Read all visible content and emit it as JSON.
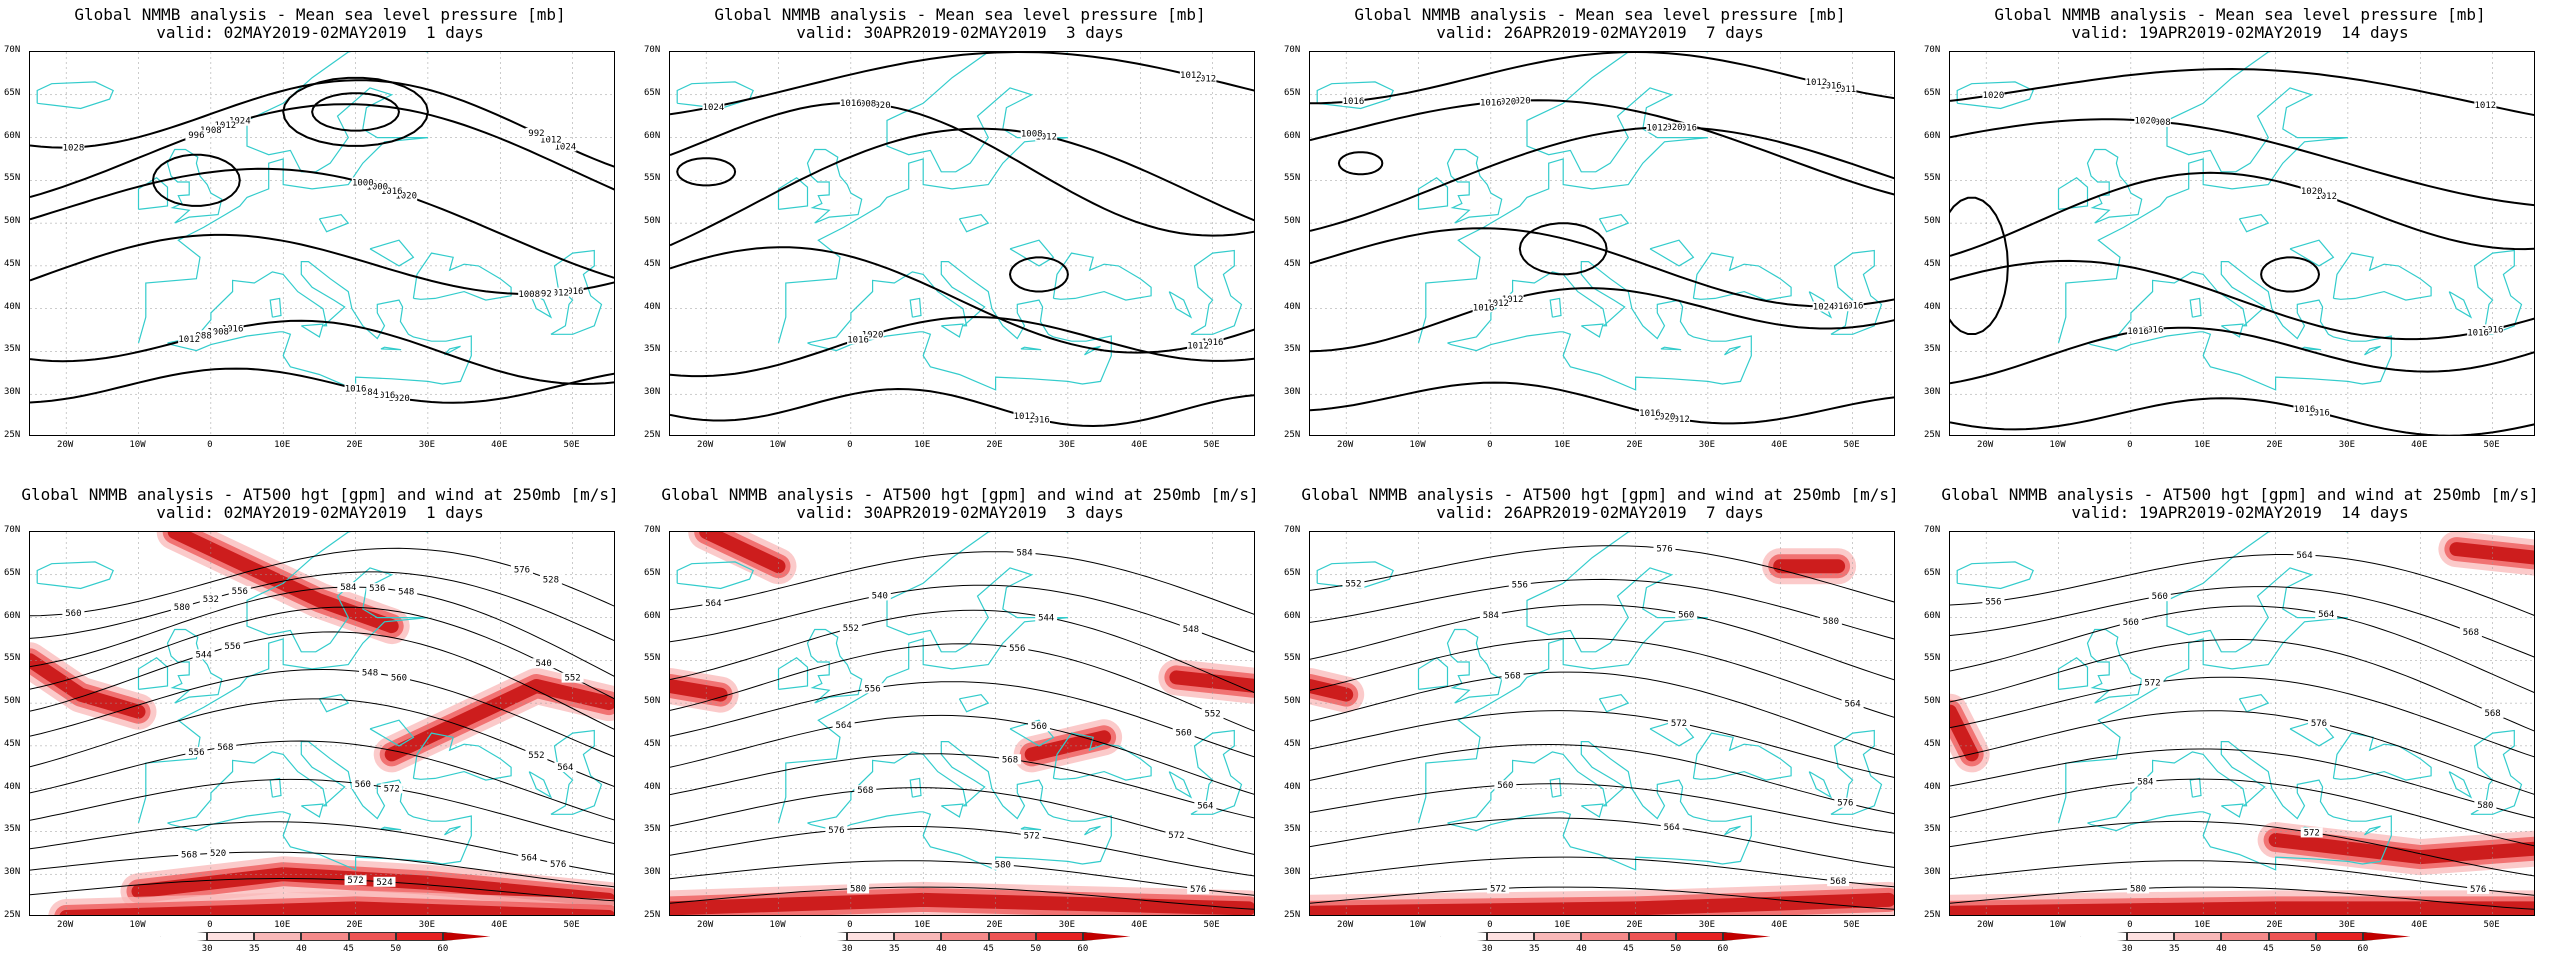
{
  "panels": [
    {
      "row": 0,
      "col": 0,
      "title_line1": "Global NMMB analysis - Mean sea level pressure [mb]",
      "title_line2": "valid: 02MAY2019-02MAY2019  1 days",
      "field": "mslp",
      "contour_labels": [
        "1028",
        "1024",
        "1020",
        "1016",
        "1016",
        "1020",
        "1024",
        "1012",
        "1016",
        "1012",
        "1008",
        "1016",
        "1012",
        "1008",
        "1000",
        "992",
        "988",
        "984",
        "992",
        "996",
        "1000",
        "1008",
        "1012",
        "1016"
      ]
    },
    {
      "row": 0,
      "col": 1,
      "title_line1": "Global NMMB analysis - Mean sea level pressure [mb]",
      "title_line2": "valid: 30APR2019-02MAY2019  3 days",
      "field": "mslp",
      "contour_labels": [
        "1024",
        "1020",
        "1012",
        "1016",
        "1020",
        "1016",
        "1012",
        "1008",
        "1008",
        "1012",
        "1016",
        "1012",
        "1012",
        "1016"
      ]
    },
    {
      "row": 0,
      "col": 2,
      "title_line1": "Global NMMB analysis - Mean sea level pressure [mb]",
      "title_line2": "valid: 26APR2019-02MAY2019  7 days",
      "field": "mslp",
      "contour_labels": [
        "1016",
        "1020",
        "1016",
        "1016",
        "1012",
        "1012",
        "1011",
        "1020",
        "1020",
        "1016",
        "1012",
        "1020",
        "1016",
        "1016",
        "1012",
        "1024",
        "1016",
        "1016",
        "1012"
      ]
    },
    {
      "row": 0,
      "col": 3,
      "title_line1": "Global NMMB analysis - Mean sea level pressure [mb]",
      "title_line2": "valid: 19APR2019-02MAY2019  14 days",
      "field": "mslp",
      "contour_labels": [
        "1020",
        "1008",
        "1012",
        "1016",
        "1016",
        "1016",
        "1012",
        "1020",
        "1020",
        "1016",
        "1016",
        "1016"
      ]
    },
    {
      "row": 1,
      "col": 0,
      "title_line1": "Global NMMB analysis - AT500 hgt [gpm] and wind at 250mb [m/s]",
      "title_line2": "valid: 02MAY2019-02MAY2019  1 days",
      "field": "z500",
      "contour_labels": [
        "560",
        "556",
        "548",
        "552",
        "556",
        "560",
        "564",
        "568",
        "572",
        "576",
        "520",
        "524",
        "528",
        "532",
        "536",
        "540",
        "544",
        "548",
        "552",
        "556",
        "560",
        "564",
        "568",
        "572",
        "576",
        "580",
        "584"
      ]
    },
    {
      "row": 1,
      "col": 1,
      "title_line1": "Global NMMB analysis - AT500 hgt [gpm] and wind at 250mb [m/s]",
      "title_line2": "valid: 30APR2019-02MAY2019  3 days",
      "field": "z500",
      "contour_labels": [
        "564",
        "540",
        "544",
        "552",
        "556",
        "560",
        "564",
        "568",
        "572",
        "576",
        "580",
        "584",
        "548",
        "552",
        "556",
        "560",
        "564",
        "568",
        "572",
        "576",
        "580"
      ]
    },
    {
      "row": 1,
      "col": 2,
      "title_line1": "Global NMMB analysis - AT500 hgt [gpm] and wind at 250mb [m/s]",
      "title_line2": "valid: 26APR2019-02MAY2019  7 days",
      "field": "z500",
      "contour_labels": [
        "552",
        "556",
        "560",
        "564",
        "568",
        "572",
        "576",
        "560",
        "564",
        "568",
        "572",
        "576",
        "580",
        "584"
      ]
    },
    {
      "row": 1,
      "col": 3,
      "title_line1": "Global NMMB analysis - AT500 hgt [gpm] and wind at 250mb [m/s]",
      "title_line2": "valid: 19APR2019-02MAY2019  14 days",
      "field": "z500",
      "contour_labels": [
        "556",
        "560",
        "564",
        "568",
        "572",
        "576",
        "580",
        "584",
        "572",
        "576",
        "580",
        "564",
        "568",
        "560"
      ]
    }
  ],
  "lat_ticks": [
    "70N",
    "65N",
    "60N",
    "55N",
    "50N",
    "45N",
    "40N",
    "35N",
    "30N",
    "25N"
  ],
  "lon_ticks": [
    "20W",
    "10W",
    "0",
    "10E",
    "20E",
    "30E",
    "40E",
    "50E"
  ],
  "colorbar": {
    "labels": [
      "30",
      "35",
      "40",
      "45",
      "50",
      "60"
    ],
    "colors": [
      "#ffffff",
      "#fde0e0",
      "#f9b8b8",
      "#f48a8a",
      "#ee5555",
      "#e62222",
      "#c00000"
    ]
  },
  "colors": {
    "coast": "#33cccc",
    "contour": "#000000",
    "grid": "#999999"
  }
}
